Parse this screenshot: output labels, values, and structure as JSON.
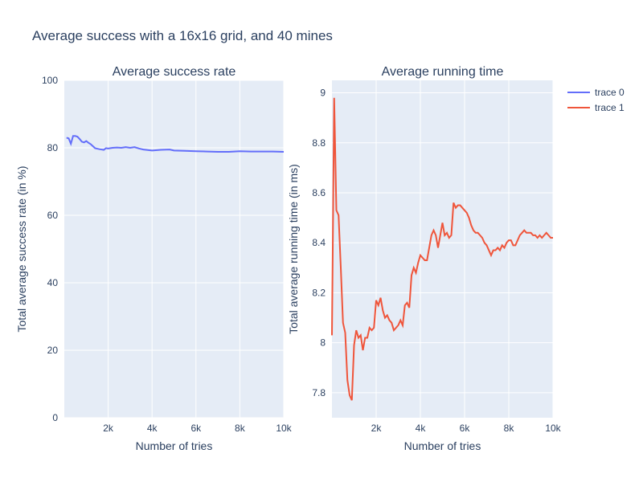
{
  "figure": {
    "title": "Average success with a 16x16 grid, and 40 mines",
    "plot_bg": "#e5ecf6",
    "grid_color": "#ffffff",
    "text_color": "#2a3f5f"
  },
  "legend": {
    "items": [
      {
        "label": "trace 0",
        "color": "#636efa"
      },
      {
        "label": "trace 1",
        "color": "#ef553b"
      }
    ]
  },
  "chart_data": [
    {
      "type": "line",
      "title": "Average success rate",
      "xlabel": "Number of tries",
      "ylabel": "Total average success rate (in %)",
      "xlim": [
        0,
        10000
      ],
      "ylim": [
        0,
        100
      ],
      "xticks": [
        2000,
        4000,
        6000,
        8000,
        10000
      ],
      "xtick_labels": [
        "2k",
        "4k",
        "6k",
        "8k",
        "10k"
      ],
      "yticks": [
        0,
        20,
        40,
        60,
        80,
        100
      ],
      "ytick_labels": [
        "0",
        "20",
        "40",
        "60",
        "80",
        "100"
      ],
      "grid": true,
      "series": [
        {
          "name": "trace 0",
          "color": "#636efa",
          "x": [
            100,
            200,
            300,
            400,
            500,
            600,
            700,
            800,
            900,
            1000,
            1100,
            1200,
            1400,
            1600,
            1800,
            1900,
            2000,
            2200,
            2400,
            2600,
            2800,
            3000,
            3200,
            3400,
            3600,
            4000,
            4400,
            4800,
            5000,
            5500,
            6000,
            6500,
            7000,
            7500,
            8000,
            8500,
            9000,
            9500,
            10000
          ],
          "y": [
            83,
            82.8,
            81.2,
            83.5,
            83.5,
            83.3,
            82.6,
            81.8,
            81.6,
            82.0,
            81.5,
            81.1,
            79.9,
            79.6,
            79.4,
            79.9,
            79.8,
            80.0,
            80.1,
            80.0,
            80.2,
            80.0,
            80.2,
            79.8,
            79.5,
            79.2,
            79.4,
            79.5,
            79.2,
            79.1,
            79.0,
            78.9,
            78.8,
            78.8,
            79.0,
            78.9,
            78.9,
            78.9,
            78.8
          ]
        }
      ]
    },
    {
      "type": "line",
      "title": "Average running time",
      "xlabel": "Number of tries",
      "ylabel": "Total average running time (in ms)",
      "xlim": [
        0,
        10000
      ],
      "ylim": [
        7.7,
        9.05
      ],
      "xticks": [
        2000,
        4000,
        6000,
        8000,
        10000
      ],
      "xtick_labels": [
        "2k",
        "4k",
        "6k",
        "8k",
        "10k"
      ],
      "yticks": [
        7.8,
        8,
        8.2,
        8.4,
        8.6,
        8.8,
        9
      ],
      "ytick_labels": [
        "7.8",
        "8",
        "8.2",
        "8.4",
        "8.6",
        "8.8",
        "9"
      ],
      "grid": true,
      "series": [
        {
          "name": "trace 1",
          "color": "#ef553b",
          "x": [
            0,
            100,
            200,
            300,
            400,
            500,
            600,
            700,
            800,
            900,
            1000,
            1100,
            1200,
            1300,
            1400,
            1500,
            1600,
            1700,
            1800,
            1900,
            2000,
            2100,
            2200,
            2300,
            2400,
            2500,
            2600,
            2700,
            2800,
            2900,
            3000,
            3100,
            3200,
            3300,
            3400,
            3500,
            3600,
            3700,
            3800,
            3900,
            4000,
            4100,
            4200,
            4300,
            4400,
            4500,
            4600,
            4700,
            4800,
            4900,
            5000,
            5100,
            5200,
            5300,
            5400,
            5500,
            5600,
            5700,
            5800,
            5900,
            6000,
            6100,
            6200,
            6300,
            6400,
            6500,
            6600,
            6700,
            6800,
            6900,
            7000,
            7100,
            7200,
            7300,
            7400,
            7500,
            7600,
            7700,
            7800,
            7900,
            8000,
            8100,
            8200,
            8300,
            8400,
            8500,
            8600,
            8700,
            8800,
            8900,
            9000,
            9100,
            9200,
            9300,
            9400,
            9500,
            9600,
            9700,
            9800,
            9900,
            10000
          ],
          "y": [
            8.03,
            8.98,
            8.53,
            8.51,
            8.3,
            8.08,
            8.04,
            7.85,
            7.79,
            7.77,
            7.99,
            8.05,
            8.02,
            8.03,
            7.97,
            8.02,
            8.02,
            8.06,
            8.05,
            8.06,
            8.17,
            8.15,
            8.18,
            8.13,
            8.1,
            8.11,
            8.09,
            8.08,
            8.05,
            8.06,
            8.07,
            8.09,
            8.07,
            8.15,
            8.16,
            8.14,
            8.27,
            8.3,
            8.28,
            8.32,
            8.35,
            8.34,
            8.33,
            8.33,
            8.38,
            8.43,
            8.45,
            8.43,
            8.38,
            8.43,
            8.48,
            8.43,
            8.44,
            8.42,
            8.43,
            8.56,
            8.54,
            8.55,
            8.55,
            8.54,
            8.53,
            8.52,
            8.5,
            8.47,
            8.45,
            8.44,
            8.44,
            8.43,
            8.42,
            8.4,
            8.39,
            8.37,
            8.35,
            8.37,
            8.37,
            8.38,
            8.37,
            8.39,
            8.38,
            8.4,
            8.41,
            8.41,
            8.39,
            8.39,
            8.41,
            8.43,
            8.44,
            8.45,
            8.44,
            8.44,
            8.44,
            8.43,
            8.43,
            8.42,
            8.43,
            8.42,
            8.43,
            8.44,
            8.43,
            8.42,
            8.42
          ]
        }
      ]
    }
  ]
}
